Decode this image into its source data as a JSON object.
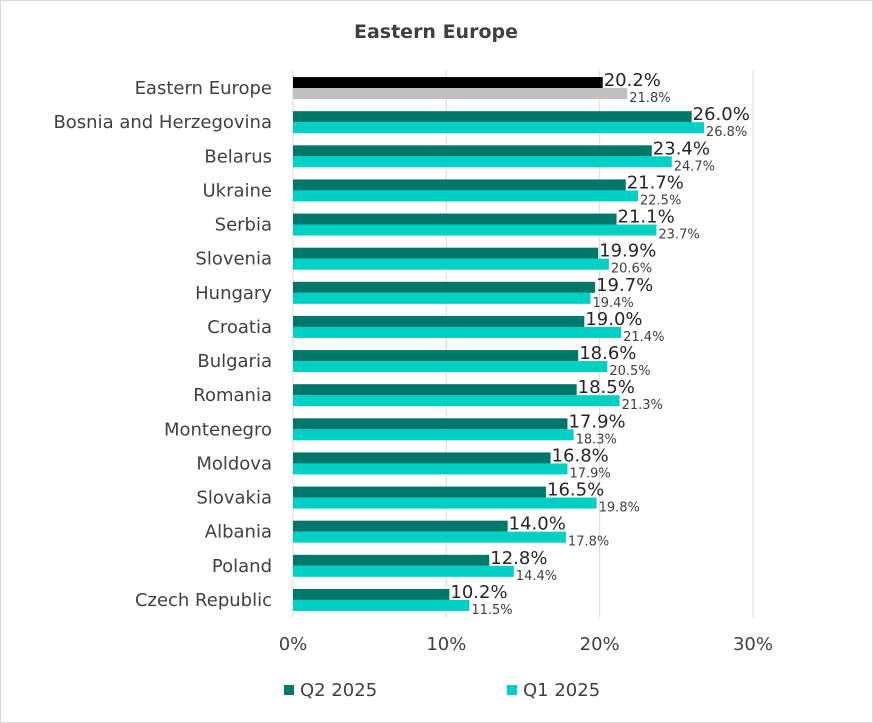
{
  "chart_data": {
    "type": "bar",
    "orientation": "horizontal",
    "title": "Eastern Europe",
    "categories": [
      "Eastern Europe",
      "Bosnia and Herzegovina",
      "Belarus",
      "Ukraine",
      "Serbia",
      "Slovenia",
      "Hungary",
      "Croatia",
      "Bulgaria",
      "Romania",
      "Montenegro",
      "Moldova",
      "Slovakia",
      "Albania",
      "Poland",
      "Czech Republic"
    ],
    "series": [
      {
        "name": "Q2 2025",
        "color": "#00776b",
        "highlight_color": "#000000",
        "values": [
          20.2,
          26.0,
          23.4,
          21.7,
          21.1,
          19.9,
          19.7,
          19.0,
          18.6,
          18.5,
          17.9,
          16.8,
          16.5,
          14.0,
          12.8,
          10.2
        ],
        "labels": [
          "20.2%",
          "26.0%",
          "23.4%",
          "21.7%",
          "21.1%",
          "19.9%",
          "19.7%",
          "19.0%",
          "18.6%",
          "18.5%",
          "17.9%",
          "16.8%",
          "16.5%",
          "14.0%",
          "12.8%",
          "10.2%"
        ]
      },
      {
        "name": "Q1 2025",
        "color": "#00cfc4",
        "highlight_color": "#bfbfbf",
        "values": [
          21.8,
          26.8,
          24.7,
          22.5,
          23.7,
          20.6,
          19.4,
          21.4,
          20.5,
          21.3,
          18.3,
          17.9,
          19.8,
          17.8,
          14.4,
          11.5
        ],
        "labels": [
          "21.8%",
          "26.8%",
          "24.7%",
          "22.5%",
          "23.7%",
          "20.6%",
          "19.4%",
          "21.4%",
          "20.5%",
          "21.3%",
          "18.3%",
          "17.9%",
          "19.8%",
          "17.8%",
          "14.4%",
          "11.5%"
        ]
      }
    ],
    "xlim": [
      0,
      30
    ],
    "ticks": [
      0,
      10,
      20,
      30
    ],
    "tick_labels": [
      "0%",
      "10%",
      "20%",
      "30%"
    ],
    "grid": true,
    "gridline_color": "#d9d9d9",
    "legend_position": "bottom"
  }
}
